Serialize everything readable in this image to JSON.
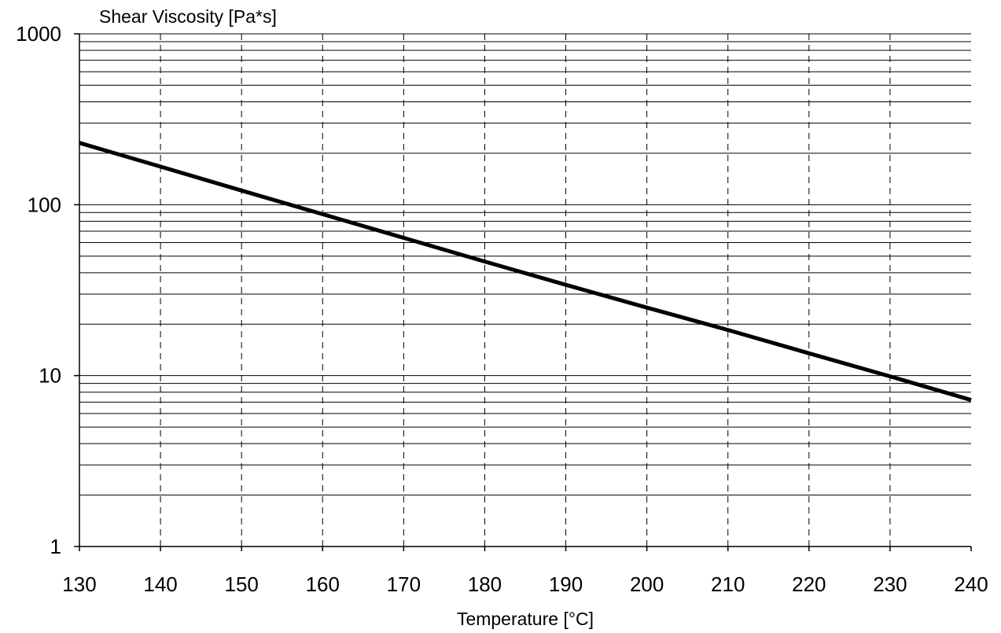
{
  "chart_data": {
    "type": "line",
    "title": "",
    "xlabel": "Temperature  [°C]",
    "ylabel": "Shear Viscosity  [Pa*s]",
    "x_scale": "linear",
    "y_scale": "log",
    "xlim": [
      130,
      240
    ],
    "ylim": [
      1,
      1000
    ],
    "x_ticks": [
      130,
      140,
      150,
      160,
      170,
      180,
      190,
      200,
      210,
      220,
      230,
      240
    ],
    "y_ticks": [
      1,
      10,
      100,
      1000
    ],
    "x_tick_labels": [
      "130",
      "140",
      "150",
      "160",
      "170",
      "180",
      "190",
      "200",
      "210",
      "220",
      "230",
      "240"
    ],
    "y_tick_labels": [
      "1",
      "10",
      "100",
      "1000"
    ],
    "grid": {
      "x": "dashed",
      "y": "solid minor (log)"
    },
    "legend": "none",
    "series": [
      {
        "color": "#000000",
        "x": [
          130,
          140,
          150,
          160,
          170,
          180,
          190,
          200,
          210,
          220,
          230,
          240
        ],
        "y": [
          230,
          167,
          121,
          88,
          64,
          46.5,
          34,
          25,
          18.5,
          13.5,
          9.9,
          7.2
        ]
      }
    ]
  }
}
